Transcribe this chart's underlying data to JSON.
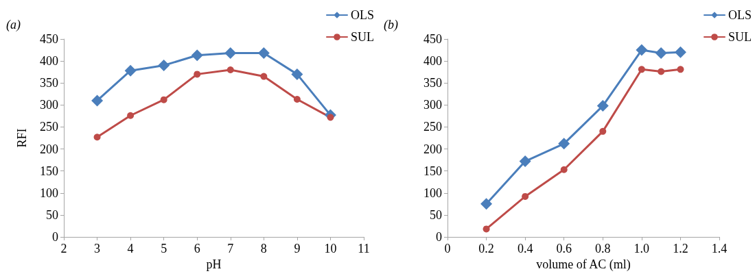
{
  "chart_data": [
    {
      "type": "line",
      "title": "(a)",
      "xlabel": "pH",
      "ylabel": "RFI",
      "x": [
        3,
        4,
        5,
        6,
        7,
        8,
        9,
        10
      ],
      "series": [
        {
          "name": "OLS",
          "color": "#4a7ebb",
          "marker": "diamond",
          "values": [
            310,
            378,
            390,
            413,
            418,
            418,
            370,
            277
          ]
        },
        {
          "name": "SUL",
          "color": "#be4b48",
          "marker": "circle",
          "values": [
            227,
            276,
            312,
            370,
            380,
            365,
            313,
            272
          ]
        }
      ],
      "xlim": [
        2,
        11
      ],
      "xticks": [
        2,
        3,
        4,
        5,
        6,
        7,
        8,
        9,
        10,
        11
      ],
      "ylim": [
        0,
        450
      ],
      "yticks": [
        0,
        50,
        100,
        150,
        200,
        250,
        300,
        350,
        400,
        450
      ],
      "grid": false,
      "legend": "top right",
      "line_style": "solid"
    },
    {
      "type": "line",
      "title": "(b)",
      "xlabel": "volume of AC (ml)",
      "x": [
        0.2,
        0.4,
        0.6,
        0.8,
        1.0,
        1.1,
        1.2
      ],
      "series": [
        {
          "name": "OLS",
          "color": "#4a7ebb",
          "marker": "diamond",
          "values": [
            75,
            172,
            212,
            298,
            425,
            418,
            420
          ]
        },
        {
          "name": "SUL",
          "color": "#be4b48",
          "marker": "circle",
          "values": [
            18,
            92,
            153,
            240,
            381,
            376,
            381
          ]
        }
      ],
      "xlim": [
        0,
        1.4
      ],
      "xticks": [
        0,
        0.2,
        0.4,
        0.6,
        0.8,
        {
          "value": 1,
          "label": "1.0"
        },
        {
          "value": 1.2,
          "label": "1.2"
        },
        1.4
      ],
      "ylim": [
        0,
        450
      ],
      "yticks": [
        0,
        50,
        100,
        150,
        200,
        250,
        300,
        350,
        400,
        450
      ],
      "grid": false,
      "legend": "top right",
      "line_style": "solid"
    }
  ]
}
